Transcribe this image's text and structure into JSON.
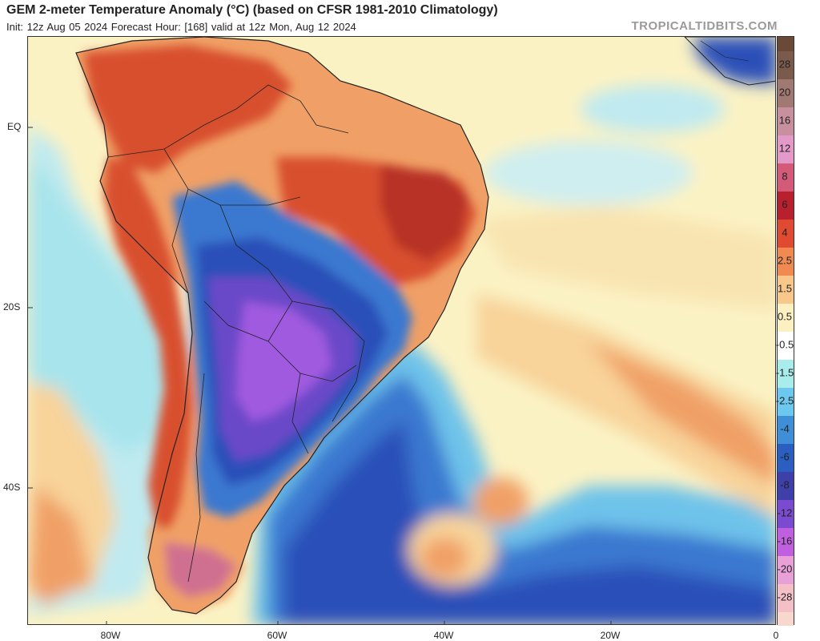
{
  "header": {
    "title": "GEM 2-meter Temperature Anomaly (°C) (based on CFSR 1981-2010 Climatology)",
    "subtitle": "Init: 12z Aug 05 2024   Forecast Hour: [168]   valid at 12z Mon, Aug 12 2024",
    "brand": "TROPICALTIDBITS.COM"
  },
  "axes": {
    "lat_labels": [
      "EQ",
      "20S",
      "40S"
    ],
    "lon_labels": [
      "80W",
      "60W",
      "40W",
      "20W",
      "0"
    ]
  },
  "colorbar": {
    "levels": [
      {
        "label": "28",
        "color": "#7a5a4a"
      },
      {
        "label": "20",
        "color": "#a07a72"
      },
      {
        "label": "16",
        "color": "#c88f9e"
      },
      {
        "label": "12",
        "color": "#e39ac8"
      },
      {
        "label": "8",
        "color": "#d45a7a"
      },
      {
        "label": "6",
        "color": "#b8202e"
      },
      {
        "label": "4",
        "color": "#e04a30"
      },
      {
        "label": "2.5",
        "color": "#f08a50"
      },
      {
        "label": "1.5",
        "color": "#f8c88a"
      },
      {
        "label": "0.5",
        "color": "#fdf0c0"
      },
      {
        "label": "-0.5",
        "color": "#ffffff"
      },
      {
        "label": "-1.5",
        "color": "#a8ecec"
      },
      {
        "label": "-2.5",
        "color": "#6cc8ee"
      },
      {
        "label": "-4",
        "color": "#3f8fd8"
      },
      {
        "label": "-6",
        "color": "#2a5ec0"
      },
      {
        "label": "-8",
        "color": "#3e3fa8"
      },
      {
        "label": "-12",
        "color": "#7a4ad0"
      },
      {
        "label": "-16",
        "color": "#c060e0"
      },
      {
        "label": "-20",
        "color": "#e8a0d8"
      },
      {
        "label": "-28",
        "color": "#f4c0c8"
      }
    ],
    "top_color": "#6a4a36",
    "bottom_color": "#f8d8cc"
  },
  "map_colors": {
    "ocean_base": "#fbf2c4",
    "warm_light": "#f8d39a",
    "warm": "#f0a066",
    "hot": "#d8502e",
    "very_hot": "#b83228",
    "cool_light": "#bfeaf0",
    "cool": "#6ec3ea",
    "cold": "#3a78d0",
    "very_cold": "#2a4fb8",
    "extreme_cold": "#6a48c8",
    "record_cold": "#a05ae0",
    "pink": "#d07090",
    "land_border": "#222222"
  }
}
